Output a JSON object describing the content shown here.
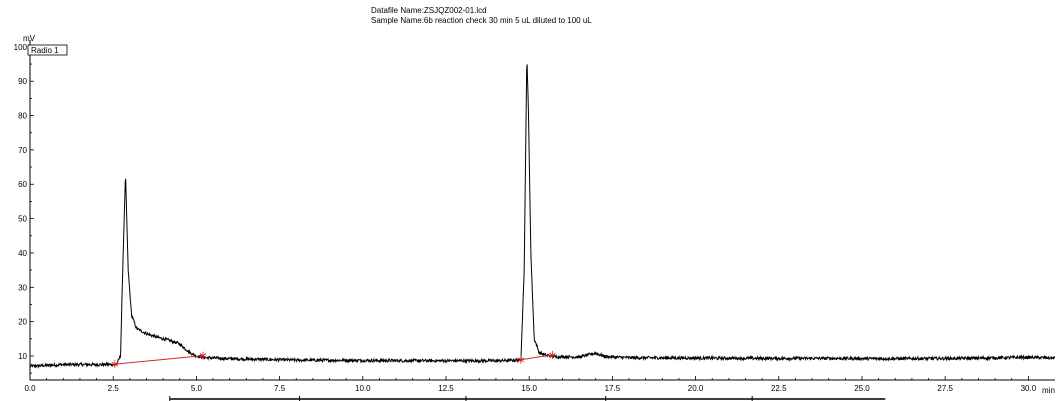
{
  "header": {
    "datafile": "Datafile Name:ZSJQZ002-01.lcd",
    "sample": "Sample Name:6b reaction check 30 min 5 uL diluted to 100 uL"
  },
  "chart_data": {
    "type": "line",
    "ylabel": "mV",
    "xlabel": "min",
    "legend": "Radio 1",
    "xlim": [
      0,
      30.8
    ],
    "ylim": [
      3,
      102
    ],
    "xticks": [
      "0.0",
      "2.5",
      "5.0",
      "7.5",
      "10.0",
      "12.5",
      "15.0",
      "17.5",
      "20.0",
      "22.5",
      "25.0",
      "27.5",
      "30.0"
    ],
    "yticks": [
      "10",
      "20",
      "30",
      "40",
      "50",
      "60",
      "70",
      "80",
      "90",
      "100"
    ],
    "series": [
      {
        "x": [
          0.0,
          1.0,
          2.0,
          2.6,
          2.72,
          2.8,
          2.87,
          2.95,
          3.05,
          3.2,
          3.5,
          3.8,
          4.2,
          4.5,
          4.8,
          5.0,
          5.3,
          6.0,
          8.0,
          10.0,
          12.0,
          14.0,
          14.75,
          14.85,
          14.93,
          14.98,
          15.05,
          15.15,
          15.3,
          15.5,
          15.8,
          16.5,
          17.0,
          17.3,
          18.0,
          20.0,
          22.0,
          24.0,
          26.0,
          28.0,
          30.0,
          30.8
        ],
        "y": [
          7.0,
          7.5,
          7.5,
          7.5,
          10.0,
          40.0,
          63.0,
          35.0,
          22.0,
          18.0,
          16.5,
          15.5,
          14.5,
          13.5,
          11.0,
          10.0,
          9.5,
          9.2,
          8.8,
          8.7,
          8.6,
          8.6,
          8.8,
          35.0,
          98.0,
          80.0,
          40.0,
          15.0,
          11.0,
          10.2,
          9.8,
          9.7,
          10.8,
          9.8,
          9.5,
          9.4,
          9.3,
          9.3,
          9.2,
          9.3,
          9.6,
          9.4
        ]
      }
    ],
    "baselines": [
      {
        "x": [
          2.55,
          5.2
        ],
        "y": [
          7.6,
          10.1
        ]
      },
      {
        "x": [
          14.75,
          15.7
        ],
        "y": [
          8.9,
          10.3
        ]
      }
    ],
    "line_color": "#000000",
    "baseline_color": "#e02020"
  },
  "bottom_bar_segments": [
    {
      "from": 4.2,
      "to": 8.1
    },
    {
      "from": 8.1,
      "to": 13.1
    },
    {
      "from": 13.1,
      "to": 17.3
    },
    {
      "from": 17.3,
      "to": 21.7
    },
    {
      "from": 21.7,
      "to": 25.7
    }
  ]
}
